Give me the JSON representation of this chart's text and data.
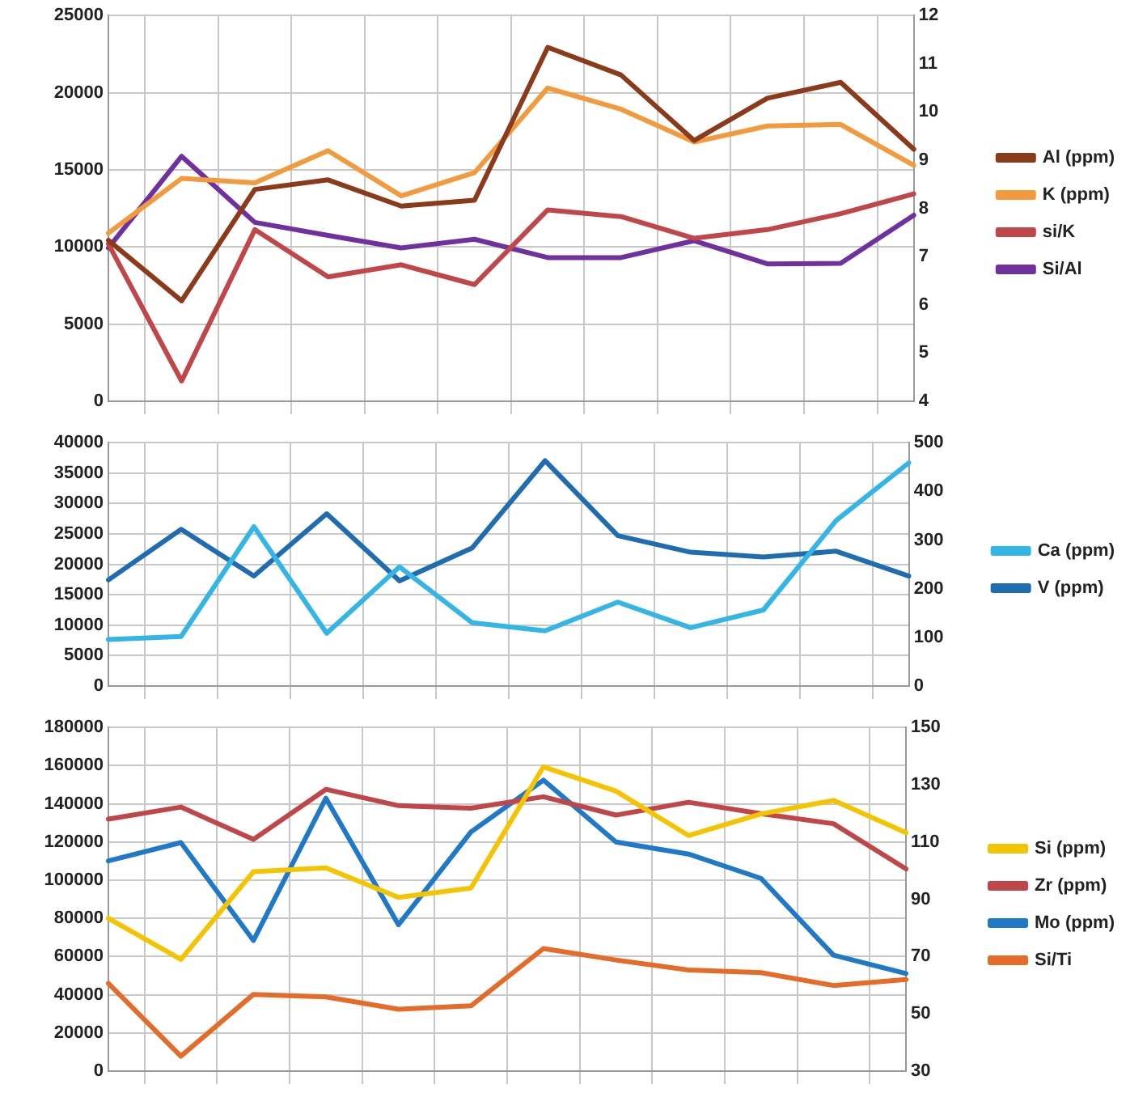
{
  "chart_data": [
    {
      "type": "line",
      "categories": [
        null,
        null,
        null,
        null,
        null,
        null,
        null,
        null,
        null,
        null,
        null,
        null
      ],
      "grid": true,
      "legend": "right",
      "marker": "none",
      "line_style": "solid",
      "ylim": [
        0,
        25000
      ],
      "yticks": [
        0,
        5000,
        10000,
        15000,
        20000,
        25000
      ],
      "y2lim": [
        4,
        12
      ],
      "y2ticks": [
        4,
        5,
        6,
        7,
        8,
        9,
        10,
        11,
        12
      ],
      "series": [
        {
          "name": "Al (ppm)",
          "color": "#8b3a1a",
          "values": [
            10430,
            6510,
            13730,
            14350,
            12650,
            13030,
            22940,
            21150,
            16900,
            19640,
            20670,
            16330
          ]
        },
        {
          "name": "K (ppm)",
          "color": "#f39a3c",
          "values": [
            10900,
            14440,
            14160,
            16240,
            13310,
            14820,
            20300,
            18930,
            16800,
            17840,
            17940,
            15290
          ]
        },
        {
          "name": "si/K",
          "color": "#c0464a",
          "axis": "y2",
          "values": [
            7.26,
            4.42,
            7.56,
            6.58,
            6.83,
            6.42,
            7.97,
            7.83,
            7.38,
            7.56,
            7.89,
            8.3
          ]
        },
        {
          "name": "Si/Al",
          "color": "#7030a0",
          "axis": "y2",
          "values": [
            7.18,
            9.08,
            7.71,
            7.44,
            7.18,
            7.36,
            6.98,
            6.98,
            7.33,
            6.85,
            6.86,
            7.86
          ]
        }
      ]
    },
    {
      "type": "line",
      "categories": [
        null,
        null,
        null,
        null,
        null,
        null,
        null,
        null,
        null,
        null,
        null,
        null
      ],
      "grid": true,
      "legend": "right",
      "marker": "none",
      "line_style": "solid",
      "ylim": [
        0,
        40000
      ],
      "yticks": [
        0,
        5000,
        10000,
        15000,
        20000,
        25000,
        30000,
        35000,
        40000
      ],
      "y2lim": [
        0,
        500
      ],
      "y2ticks": [
        0,
        100,
        200,
        300,
        400,
        500
      ],
      "series": [
        {
          "name": "Ca (ppm)",
          "color": "#33b5e5",
          "values": [
            7650,
            8160,
            26200,
            8670,
            19600,
            10400,
            9080,
            13800,
            9590,
            12500,
            27200,
            36700
          ]
        },
        {
          "name": "V (ppm)",
          "color": "#1f6cb0",
          "axis": "y2",
          "values": [
            218,
            322,
            226,
            354,
            216,
            284,
            463,
            309,
            275,
            265,
            277,
            226
          ]
        }
      ]
    },
    {
      "type": "line",
      "categories": [
        null,
        null,
        null,
        null,
        null,
        null,
        null,
        null,
        null,
        null,
        null,
        null
      ],
      "grid": true,
      "legend": "right",
      "marker": "none",
      "line_style": "solid",
      "ylim": [
        0,
        180000
      ],
      "yticks": [
        0,
        20000,
        40000,
        60000,
        80000,
        100000,
        120000,
        140000,
        160000,
        180000
      ],
      "y2lim": [
        30,
        150
      ],
      "y2ticks": [
        30,
        50,
        70,
        90,
        110,
        130,
        150
      ],
      "series": [
        {
          "name": "Si (ppm)",
          "color": "#f5c400",
          "values": [
            80000,
            58500,
            104400,
            106500,
            91000,
            95900,
            159400,
            146700,
            123400,
            134700,
            141800,
            124900
          ]
        },
        {
          "name": "Zr (ppm)",
          "color": "#c0464a",
          "axis": "y2",
          "values": [
            118,
            122.2,
            110.9,
            128.4,
            122.7,
            121.8,
            125.8,
            119.4,
            123.9,
            119.9,
            116.4,
            100.6
          ]
        },
        {
          "name": "Mo (ppm)",
          "color": "#1f78c8",
          "axis": "y2",
          "values": [
            103.4,
            109.8,
            75.6,
            125.3,
            81.1,
            113.5,
            131.6,
            110,
            105.8,
            97.3,
            70.5,
            64.1
          ]
        },
        {
          "name": "Si/Ti",
          "color": "#e46c28",
          "axis": "y2",
          "values": [
            60.6,
            35.2,
            56.8,
            55.9,
            51.6,
            52.8,
            72.8,
            68.8,
            65.3,
            64.4,
            59.9,
            62
          ]
        }
      ]
    }
  ]
}
